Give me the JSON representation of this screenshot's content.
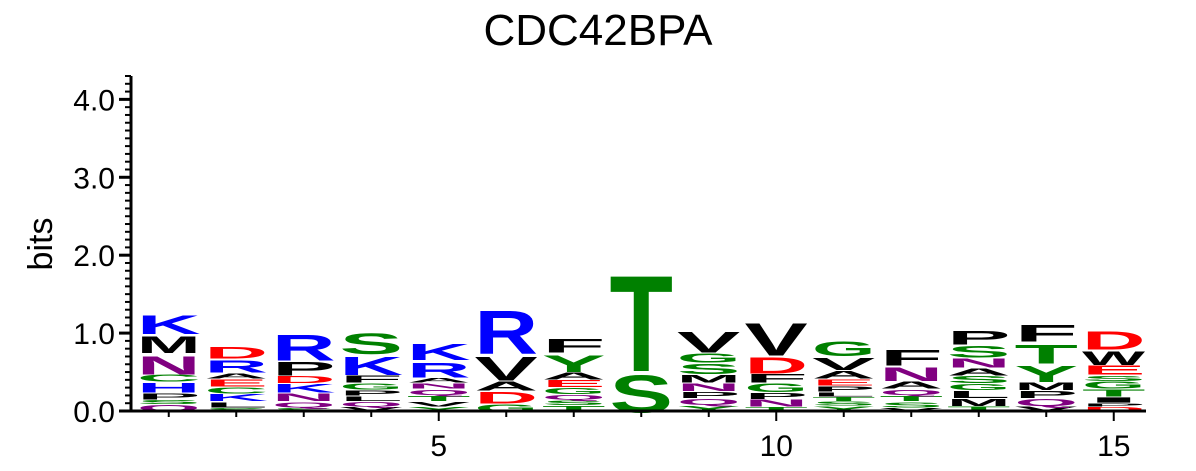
{
  "chart_data": {
    "type": "sequence-logo",
    "title": "CDC42BPA",
    "ylabel": "bits",
    "ylim": [
      0,
      4.3
    ],
    "y_ticks": [
      "0.0",
      "1.0",
      "2.0",
      "3.0",
      "4.0"
    ],
    "y_tick_values": [
      0,
      1,
      2,
      3,
      4
    ],
    "x_tick_labels": [
      "5",
      "10",
      "15"
    ],
    "x_tick_positions": [
      5,
      10,
      15
    ],
    "positions": [
      1,
      2,
      3,
      4,
      5,
      6,
      7,
      8,
      9,
      10,
      11,
      12,
      13,
      14,
      15
    ],
    "colors": {
      "K": "#0000ff",
      "R": "#0000ff",
      "H": "#0000ff",
      "D": "#ff0000",
      "E": "#ff0000",
      "S": "#008000",
      "T": "#008000",
      "G": "#008000",
      "Y": "#008000",
      "C": "#008000",
      "N": "#800080",
      "Q": "#800080",
      "A": "#000000",
      "V": "#000000",
      "L": "#000000",
      "I": "#000000",
      "P": "#000000",
      "W": "#000000",
      "F": "#000000",
      "M": "#000000"
    },
    "columns": [
      [
        [
          "Q",
          0.09
        ],
        [
          "S",
          0.06
        ],
        [
          "P",
          0.09
        ],
        [
          "H",
          0.14
        ],
        [
          "C",
          0.1
        ],
        [
          "N",
          0.27
        ],
        [
          "M",
          0.25
        ],
        [
          "K",
          0.28
        ]
      ],
      [
        [
          "S",
          0.05
        ],
        [
          "L",
          0.08
        ],
        [
          "K",
          0.1
        ],
        [
          "C",
          0.09
        ],
        [
          "E",
          0.1
        ],
        [
          "A",
          0.08
        ],
        [
          "R",
          0.18
        ],
        [
          "D",
          0.17
        ]
      ],
      [
        [
          "S",
          0.05
        ],
        [
          "Q",
          0.08
        ],
        [
          "N",
          0.11
        ],
        [
          "K",
          0.12
        ],
        [
          "D",
          0.1
        ],
        [
          "P",
          0.2
        ],
        [
          "R",
          0.38
        ]
      ],
      [
        [
          "V",
          0.06
        ],
        [
          "Q",
          0.07
        ],
        [
          "L",
          0.07
        ],
        [
          "P",
          0.08
        ],
        [
          "G",
          0.09
        ],
        [
          "F",
          0.1
        ],
        [
          "K",
          0.27
        ],
        [
          "S",
          0.31
        ]
      ],
      [
        [
          "Y",
          0.06
        ],
        [
          "V",
          0.07
        ],
        [
          "T",
          0.08
        ],
        [
          "Q",
          0.08
        ],
        [
          "N",
          0.08
        ],
        [
          "A",
          0.07
        ],
        [
          "R",
          0.22
        ],
        [
          "K",
          0.24
        ]
      ],
      [
        [
          "G",
          0.1
        ],
        [
          "D",
          0.17
        ],
        [
          "A",
          0.13
        ],
        [
          "V",
          0.35
        ],
        [
          "R",
          0.64
        ]
      ],
      [
        [
          "T",
          0.08
        ],
        [
          "S",
          0.07
        ],
        [
          "Q",
          0.07
        ],
        [
          "G",
          0.09
        ],
        [
          "E",
          0.1
        ],
        [
          "A",
          0.1
        ],
        [
          "Y",
          0.25
        ],
        [
          "F",
          0.2
        ]
      ],
      [
        [
          "S",
          0.56
        ],
        [
          "T",
          1.42
        ]
      ],
      [
        [
          "Y",
          0.08
        ],
        [
          "Q",
          0.09
        ],
        [
          "P",
          0.09
        ],
        [
          "N",
          0.11
        ],
        [
          "M",
          0.11
        ],
        [
          "S",
          0.15
        ],
        [
          "G",
          0.13
        ],
        [
          "V",
          0.31
        ]
      ],
      [
        [
          "T",
          0.06
        ],
        [
          "N",
          0.1
        ],
        [
          "P",
          0.09
        ],
        [
          "G",
          0.12
        ],
        [
          "F",
          0.12
        ],
        [
          "D",
          0.24
        ],
        [
          "V",
          0.48
        ]
      ],
      [
        [
          "Y",
          0.07
        ],
        [
          "S",
          0.06
        ],
        [
          "T",
          0.06
        ],
        [
          "L",
          0.06
        ],
        [
          "P",
          0.08
        ],
        [
          "E",
          0.09
        ],
        [
          "A",
          0.11
        ],
        [
          "V",
          0.18
        ],
        [
          "G",
          0.22
        ]
      ],
      [
        [
          "V",
          0.05
        ],
        [
          "S",
          0.08
        ],
        [
          "T",
          0.08
        ],
        [
          "Q",
          0.08
        ],
        [
          "A",
          0.1
        ],
        [
          "N",
          0.2
        ],
        [
          "F",
          0.23
        ]
      ],
      [
        [
          "T",
          0.07
        ],
        [
          "M",
          0.1
        ],
        [
          "L",
          0.1
        ],
        [
          "G",
          0.09
        ],
        [
          "S",
          0.1
        ],
        [
          "A",
          0.1
        ],
        [
          "N",
          0.13
        ],
        [
          "S",
          0.17
        ],
        [
          "P",
          0.2
        ]
      ],
      [
        [
          "V",
          0.07
        ],
        [
          "Q",
          0.1
        ],
        [
          "P",
          0.1
        ],
        [
          "M",
          0.11
        ],
        [
          "Y",
          0.24
        ],
        [
          "T",
          0.28
        ],
        [
          "F",
          0.25
        ]
      ],
      [
        [
          "D",
          0.06
        ],
        [
          "P",
          0.05
        ],
        [
          "I",
          0.08
        ],
        [
          "T",
          0.1
        ],
        [
          "G",
          0.1
        ],
        [
          "S",
          0.08
        ],
        [
          "E",
          0.13
        ],
        [
          "W",
          0.2
        ],
        [
          "D",
          0.27
        ]
      ]
    ]
  }
}
